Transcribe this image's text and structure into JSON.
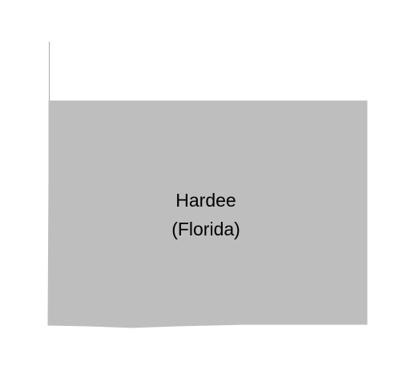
{
  "map": {
    "region": {
      "name": "Hardee",
      "state_label": "(Florida)",
      "fill_color": "#bebebe",
      "border_color": "#a9a9a9"
    },
    "background_color": "#ffffff"
  }
}
